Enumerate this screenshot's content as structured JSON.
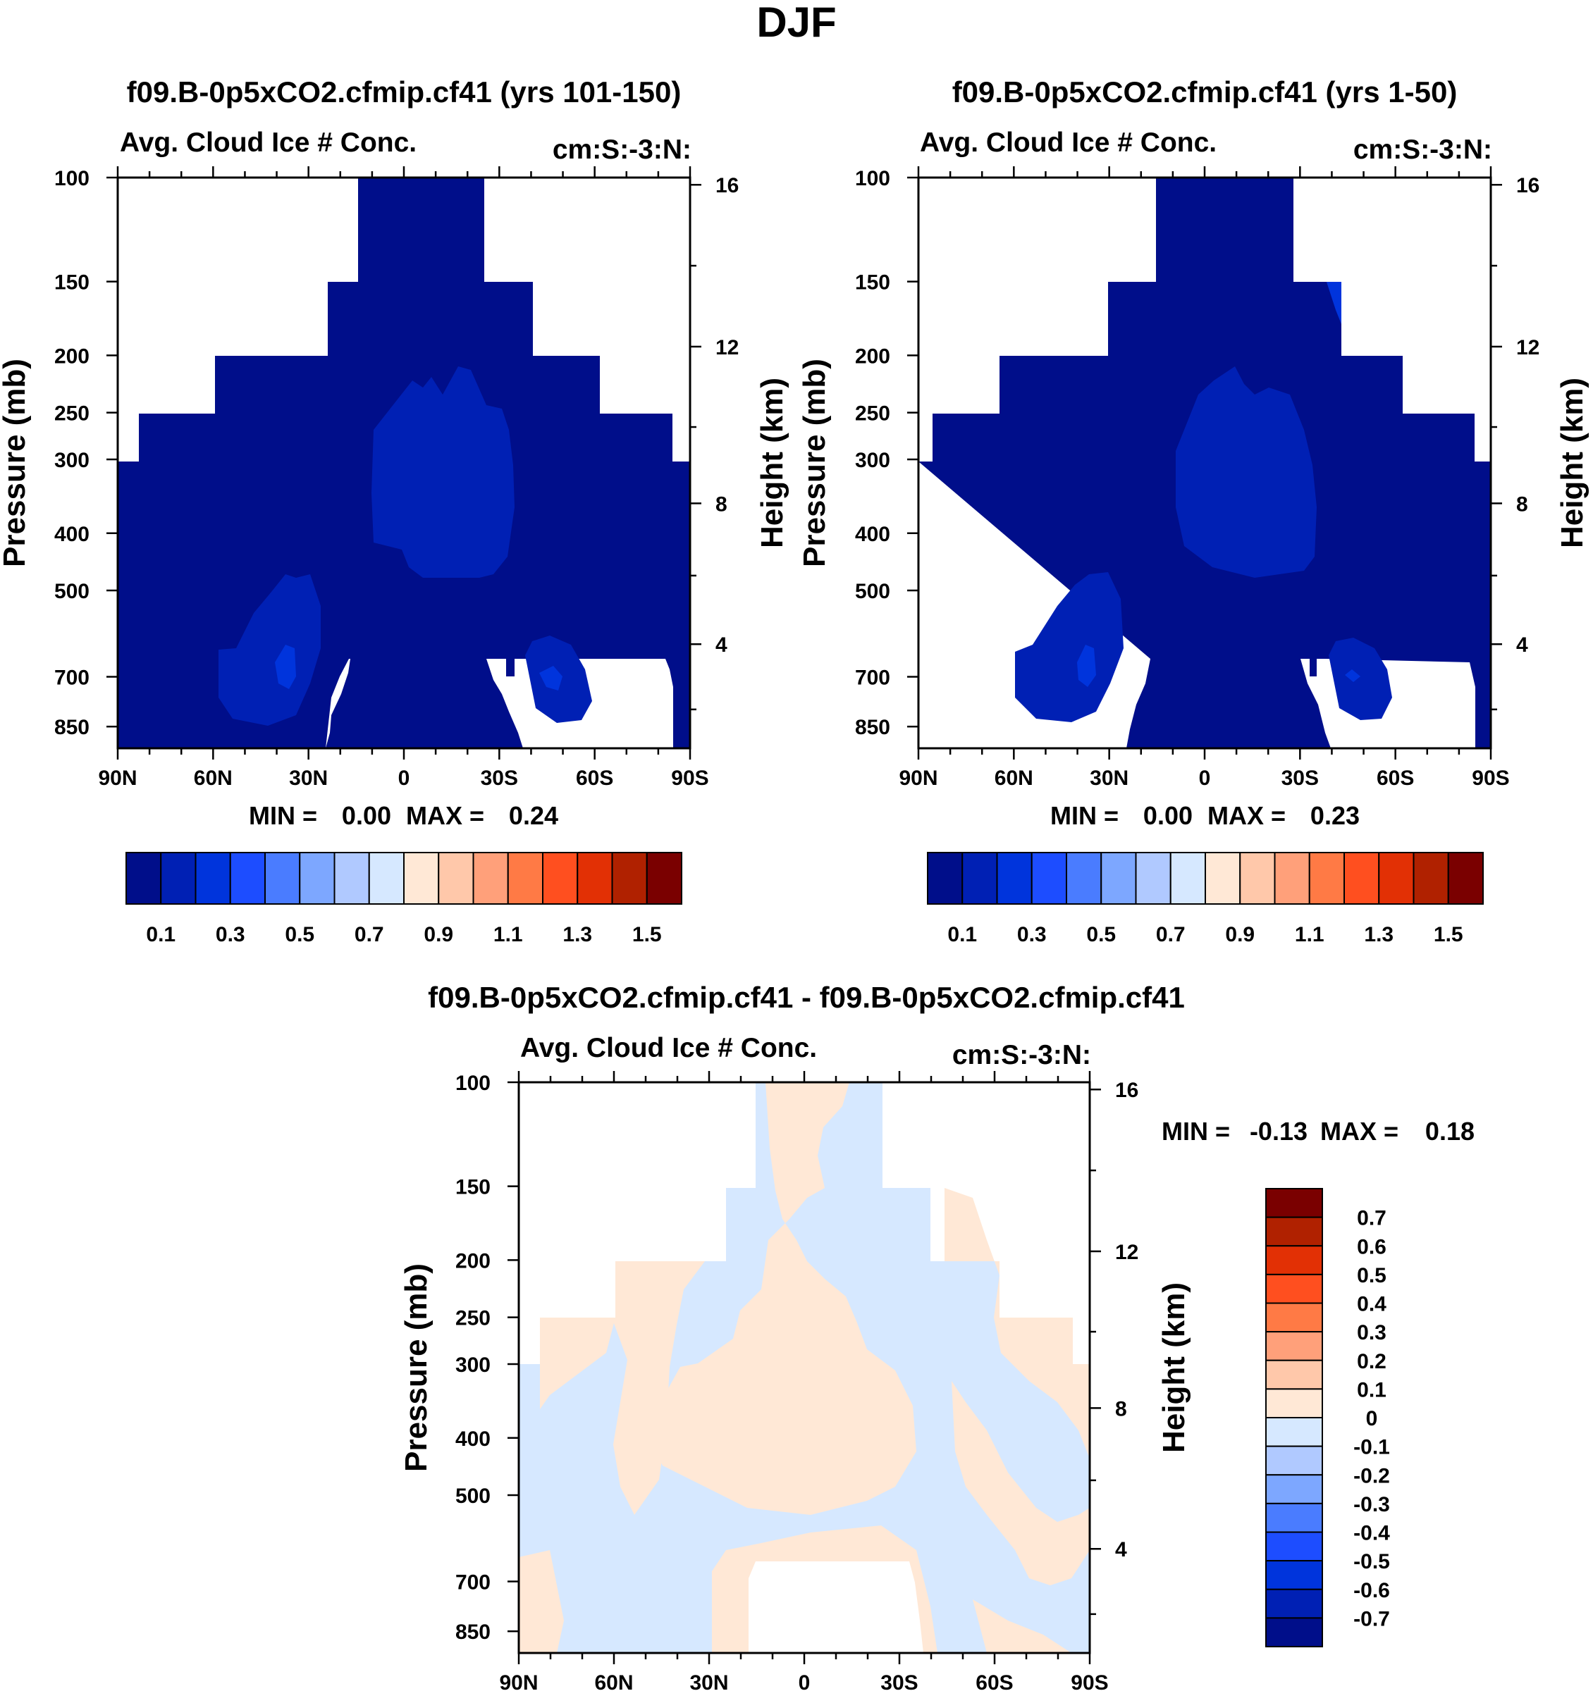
{
  "figure": {
    "title": "DJF"
  },
  "panel_labels": {
    "variable": "Avg. Cloud Ice # Conc.",
    "units": "cm:S:-3:N:",
    "left_axis_title": "Pressure (mb)",
    "right_axis_title": "Height (km)"
  },
  "stats": {
    "min_label": "MIN =",
    "max_label": "MAX ="
  },
  "colors": {
    "abs_scale": [
      "#000e8a",
      "#0020b4",
      "#0034dc",
      "#1d4dff",
      "#4a7cff",
      "#7da7ff",
      "#b0c9ff",
      "#d6e8ff",
      "#ffe8d6",
      "#ffc8aa",
      "#ffa07a",
      "#ff7a45",
      "#ff4f1f",
      "#e23005",
      "#b02100",
      "#7a0000"
    ],
    "diff_scale": [
      "#000e8a",
      "#0020b4",
      "#0034dc",
      "#1d4dff",
      "#4a7cff",
      "#7da7ff",
      "#b0c9ff",
      "#d6e8ff",
      "#ffe8d6",
      "#ffc8aa",
      "#ffa07a",
      "#ff7a45",
      "#ff4f1f",
      "#e23005",
      "#b02100",
      "#7a0000"
    ]
  },
  "chart_data": [
    {
      "type": "heatmap",
      "title": "f09.B-0p5xCO2.cfmip.cf41 (yrs 101-150)",
      "subtitle": "Avg. Cloud Ice # Conc.",
      "units": "cm:S:-3:N:",
      "xlabel": "",
      "ylabel": "Pressure (mb)",
      "ylabel_right": "Height (km)",
      "x_ticks": [
        "90N",
        "60N",
        "30N",
        "0",
        "30S",
        "60S",
        "90S"
      ],
      "x_range": [
        -90,
        90
      ],
      "y_ticks": [
        100,
        150,
        200,
        250,
        300,
        400,
        500,
        700,
        850
      ],
      "y_range": [
        100,
        925
      ],
      "y_scale": "log",
      "right_ticks": [
        16,
        12,
        8,
        4
      ],
      "min": "0.00",
      "max": "0.24",
      "colorbar_labels": [
        "0.1",
        "0.3",
        "0.5",
        "0.7",
        "0.9",
        "1.1",
        "1.3",
        "1.5"
      ],
      "dominant_value_range": [
        0.0,
        0.1
      ],
      "local_maxima": [
        {
          "lat": 15,
          "p": 350,
          "value_range": [
            0.1,
            0.2
          ]
        },
        {
          "lat": -35,
          "p": 680,
          "value_range": [
            0.1,
            0.2
          ]
        },
        {
          "lat": 45,
          "p": 690,
          "value_range": [
            0.1,
            0.2
          ]
        }
      ]
    },
    {
      "type": "heatmap",
      "title": "f09.B-0p5xCO2.cfmip.cf41 (yrs 1-50)",
      "subtitle": "Avg. Cloud Ice # Conc.",
      "units": "cm:S:-3:N:",
      "xlabel": "",
      "ylabel": "Pressure (mb)",
      "ylabel_right": "Height (km)",
      "x_ticks": [
        "90N",
        "60N",
        "30N",
        "0",
        "30S",
        "60S",
        "90S"
      ],
      "x_range": [
        -90,
        90
      ],
      "y_ticks": [
        100,
        150,
        200,
        250,
        300,
        400,
        500,
        700,
        850
      ],
      "y_range": [
        100,
        925
      ],
      "y_scale": "log",
      "right_ticks": [
        16,
        12,
        8,
        4
      ],
      "min": "0.00",
      "max": "0.23",
      "colorbar_labels": [
        "0.1",
        "0.3",
        "0.5",
        "0.7",
        "0.9",
        "1.1",
        "1.3",
        "1.5"
      ],
      "dominant_value_range": [
        0.0,
        0.1
      ],
      "local_maxima": [
        {
          "lat": 15,
          "p": 350,
          "value_range": [
            0.1,
            0.2
          ]
        },
        {
          "lat": -35,
          "p": 680,
          "value_range": [
            0.1,
            0.2
          ]
        },
        {
          "lat": 45,
          "p": 690,
          "value_range": [
            0.1,
            0.2
          ]
        }
      ]
    },
    {
      "type": "heatmap",
      "title": "f09.B-0p5xCO2.cfmip.cf41 - f09.B-0p5xCO2.cfmip.cf41",
      "subtitle": "Avg. Cloud Ice # Conc.",
      "units": "cm:S:-3:N:",
      "xlabel": "",
      "ylabel": "Pressure (mb)",
      "ylabel_right": "Height (km)",
      "x_ticks": [
        "90N",
        "60N",
        "30N",
        "0",
        "30S",
        "60S",
        "90S"
      ],
      "x_range": [
        -90,
        90
      ],
      "y_ticks": [
        100,
        150,
        200,
        250,
        300,
        400,
        500,
        700,
        850
      ],
      "y_range": [
        100,
        925
      ],
      "y_scale": "log",
      "right_ticks": [
        16,
        12,
        8,
        4
      ],
      "min": "-0.13",
      "max": "0.18",
      "colorbar_labels": [
        "0.7",
        "0.6",
        "0.5",
        "0.4",
        "0.3",
        "0.2",
        "0.1",
        "0",
        "-0.1",
        "-0.2",
        "-0.3",
        "-0.4",
        "-0.5",
        "-0.6",
        "-0.7"
      ],
      "value_categories": [
        "-0.1 to 0",
        "0 to 0.1"
      ]
    }
  ]
}
